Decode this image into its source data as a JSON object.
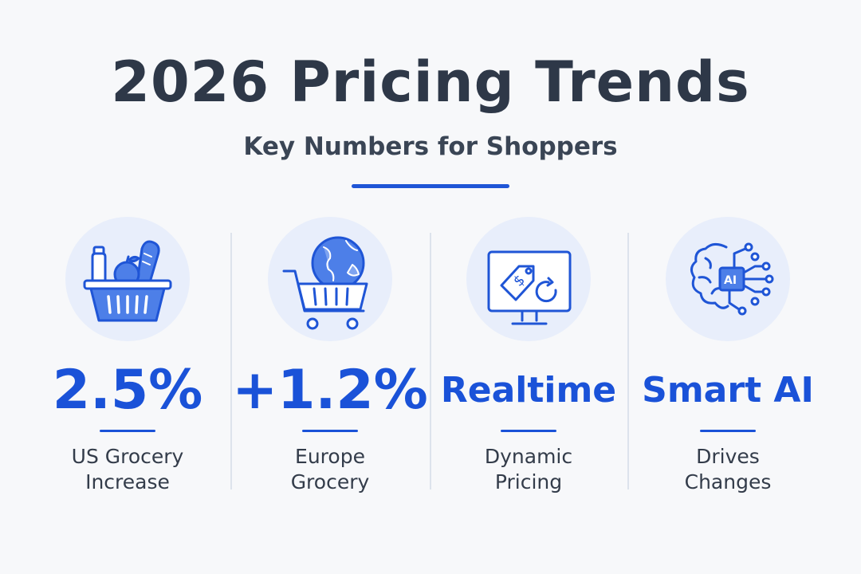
{
  "header": {
    "title": "2026 Pricing Trends",
    "subtitle": "Key Numbers for Shoppers"
  },
  "colors": {
    "accent": "#1a52d8",
    "icon_background": "#e8eefb",
    "title": "#2e3848"
  },
  "stats": [
    {
      "icon": "grocery-basket-icon",
      "value": "2.5%",
      "label_line1": "US Grocery",
      "label_line2": "Increase"
    },
    {
      "icon": "cart-globe-icon",
      "value": "+1.2%",
      "label_line1": "Europe",
      "label_line2": "Grocery"
    },
    {
      "icon": "monitor-price-tag-icon",
      "value": "Realtime",
      "label_line1": "Dynamic",
      "label_line2": "Pricing"
    },
    {
      "icon": "ai-brain-icon",
      "value": "Smart AI",
      "label_line1": "Drives",
      "label_line2": "Changes"
    }
  ]
}
